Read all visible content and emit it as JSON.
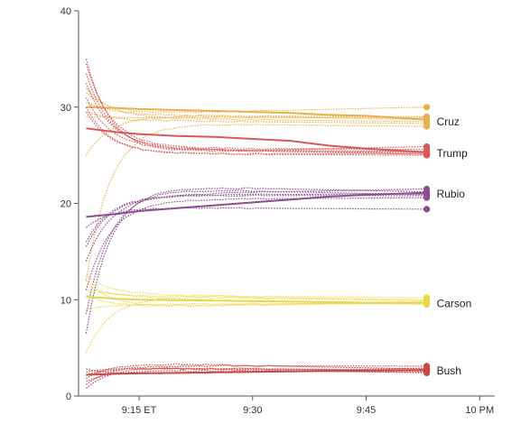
{
  "chart_data": {
    "type": "line",
    "title": "",
    "xlabel": "",
    "ylabel": "",
    "y_ticks": [
      0,
      10,
      20,
      30,
      40
    ],
    "y_tick_labels": [
      "0",
      "10",
      "20",
      "30",
      "40"
    ],
    "ylim": [
      0,
      40
    ],
    "x_ticks": [
      "9:15",
      "9:30",
      "9:45",
      "10:00"
    ],
    "x_tick_labels": [
      "9:15 ET",
      "9:30",
      "9:45",
      "10 PM"
    ],
    "xlim": [
      "9:07",
      "10:02"
    ],
    "grid": false,
    "end_time": "9:53",
    "series": [
      {
        "name": "Cruz",
        "color": "#e8b14e",
        "label_value": 28.5,
        "estimate": [
          [
            9.08,
            30.0
          ],
          [
            9.12,
            29.9
          ],
          [
            9.15,
            29.8
          ],
          [
            9.2,
            29.7
          ],
          [
            9.25,
            29.6
          ],
          [
            9.3,
            29.5
          ],
          [
            9.35,
            29.4
          ],
          [
            9.4,
            29.2
          ],
          [
            9.45,
            29.1
          ],
          [
            9.53,
            28.7
          ]
        ],
        "end_values": [
          30.0,
          29.0,
          28.9,
          28.7,
          28.5,
          28.3,
          28.0
        ],
        "start_values": [
          31.5,
          25.0,
          29.0,
          30.5,
          32.0,
          29.5,
          12.0,
          30.0
        ]
      },
      {
        "name": "Trump",
        "color": "#d9585a",
        "label_value": 25.2,
        "estimate": [
          [
            9.08,
            27.8
          ],
          [
            9.12,
            27.4
          ],
          [
            9.15,
            27.2
          ],
          [
            9.2,
            27.0
          ],
          [
            9.25,
            26.9
          ],
          [
            9.3,
            26.7
          ],
          [
            9.35,
            26.5
          ],
          [
            9.4,
            26.0
          ],
          [
            9.45,
            25.7
          ],
          [
            9.53,
            25.3
          ]
        ],
        "end_values": [
          25.9,
          25.6,
          25.4,
          25.3,
          25.2,
          25.1,
          25.0
        ],
        "start_values": [
          35.0,
          34.5,
          31.0,
          33.5,
          30.0,
          32.5,
          29.5,
          30.5
        ]
      },
      {
        "name": "Rubio",
        "color": "#8b4f8e",
        "label_value": 21.0,
        "estimate": [
          [
            9.08,
            18.6
          ],
          [
            9.12,
            18.9
          ],
          [
            9.15,
            19.2
          ],
          [
            9.2,
            19.5
          ],
          [
            9.25,
            19.8
          ],
          [
            9.3,
            20.1
          ],
          [
            9.35,
            20.4
          ],
          [
            9.4,
            20.7
          ],
          [
            9.45,
            20.9
          ],
          [
            9.53,
            21.1
          ]
        ],
        "end_values": [
          21.5,
          21.2,
          21.0,
          20.9,
          20.8,
          20.6,
          19.4
        ],
        "start_values": [
          14.0,
          6.5,
          16.0,
          8.5,
          15.5,
          11.0,
          17.5,
          16.5
        ]
      },
      {
        "name": "Carson",
        "color": "#e8d84a",
        "label_value": 9.6,
        "estimate": [
          [
            9.08,
            10.3
          ],
          [
            9.12,
            10.1
          ],
          [
            9.15,
            10.0
          ],
          [
            9.2,
            9.95
          ],
          [
            9.25,
            9.9
          ],
          [
            9.3,
            9.85
          ],
          [
            9.35,
            9.8
          ],
          [
            9.4,
            9.75
          ],
          [
            9.45,
            9.7
          ],
          [
            9.53,
            9.7
          ]
        ],
        "end_values": [
          10.2,
          10.0,
          9.9,
          9.8,
          9.7,
          9.6,
          9.5
        ],
        "start_values": [
          12.5,
          11.0,
          4.5,
          12.0,
          10.5,
          9.0,
          11.5,
          12.0
        ]
      },
      {
        "name": "Bush",
        "color": "#c94848",
        "label_value": 2.6,
        "estimate": [
          [
            9.08,
            2.2
          ],
          [
            9.12,
            2.3
          ],
          [
            9.15,
            2.35
          ],
          [
            9.2,
            2.4
          ],
          [
            9.25,
            2.45
          ],
          [
            9.3,
            2.5
          ],
          [
            9.35,
            2.55
          ],
          [
            9.4,
            2.6
          ],
          [
            9.45,
            2.65
          ],
          [
            9.53,
            2.7
          ]
        ],
        "end_values": [
          3.1,
          2.9,
          2.8,
          2.7,
          2.6,
          2.5,
          2.4
        ],
        "start_values": [
          1.2,
          2.8,
          1.8,
          2.2,
          0.8,
          1.5,
          2.5,
          2.0
        ]
      }
    ]
  }
}
